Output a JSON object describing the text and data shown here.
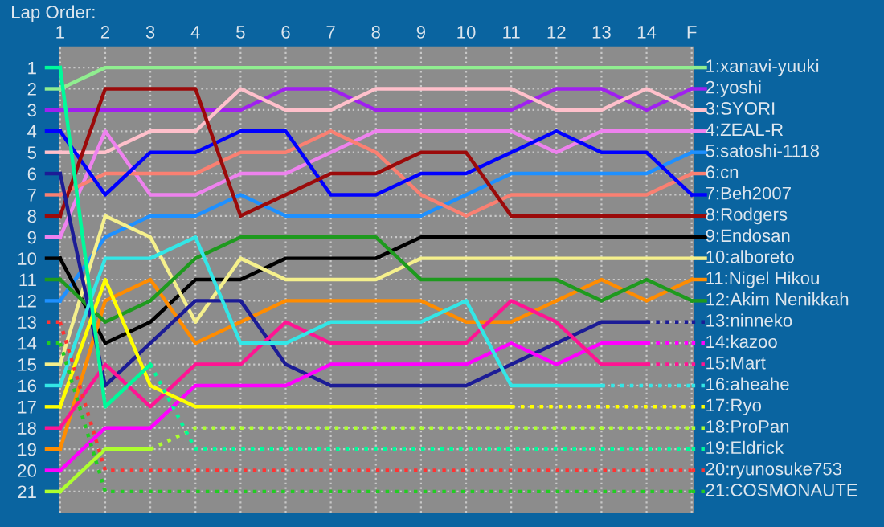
{
  "chart_data": {
    "type": "line",
    "title": "Lap Order:",
    "categories": [
      "1",
      "2",
      "3",
      "4",
      "5",
      "6",
      "7",
      "8",
      "9",
      "10",
      "11",
      "12",
      "13",
      "14",
      "F"
    ],
    "ylim": [
      22,
      0
    ],
    "yticks": [
      1,
      2,
      3,
      4,
      5,
      6,
      7,
      8,
      9,
      10,
      11,
      12,
      13,
      14,
      15,
      16,
      17,
      18,
      19,
      20,
      21
    ],
    "grid": true,
    "legend": "right",
    "line_style": "solid",
    "series": [
      {
        "name": "1:xanavi-yuuki",
        "color": "#90ee90",
        "values": [
          2,
          1,
          1,
          1,
          1,
          1,
          1,
          1,
          1,
          1,
          1,
          1,
          1,
          1,
          1
        ]
      },
      {
        "name": "2:yoshi",
        "color": "#a020f0",
        "values": [
          3,
          3,
          3,
          3,
          3,
          2,
          2,
          3,
          3,
          3,
          3,
          2,
          2,
          3,
          2
        ]
      },
      {
        "name": "3:SYORI",
        "color": "#ffc0cb",
        "values": [
          5,
          5,
          4,
          4,
          2,
          3,
          3,
          2,
          2,
          2,
          2,
          3,
          3,
          2,
          3
        ]
      },
      {
        "name": "4:ZEAL-R",
        "color": "#ee82ee",
        "values": [
          9,
          4,
          7,
          7,
          6,
          6,
          5,
          4,
          4,
          4,
          4,
          5,
          4,
          4,
          4
        ]
      },
      {
        "name": "5:satoshi-1118",
        "color": "#1e90ff",
        "values": [
          12,
          9,
          8,
          8,
          7,
          8,
          8,
          8,
          8,
          7,
          6,
          6,
          6,
          6,
          5
        ]
      },
      {
        "name": "6:cn",
        "color": "#fa8072",
        "values": [
          7,
          6,
          6,
          6,
          5,
          5,
          4,
          5,
          7,
          8,
          7,
          7,
          7,
          7,
          6
        ]
      },
      {
        "name": "7:Beh2007",
        "color": "#0000ff",
        "values": [
          4,
          7,
          5,
          5,
          4,
          4,
          7,
          7,
          6,
          6,
          5,
          4,
          5,
          5,
          7
        ]
      },
      {
        "name": "8:Rodgers",
        "color": "#9b0a0a",
        "values": [
          8,
          2,
          2,
          2,
          8,
          7,
          6,
          6,
          5,
          5,
          8,
          8,
          8,
          8,
          8
        ]
      },
      {
        "name": "9:Endosan",
        "color": "#000000",
        "values": [
          10,
          14,
          13,
          11,
          11,
          10,
          10,
          10,
          9,
          9,
          9,
          9,
          9,
          9,
          9
        ]
      },
      {
        "name": "10:alboreto",
        "color": "#f5f08c",
        "values": [
          15,
          8,
          9,
          13,
          10,
          11,
          11,
          11,
          10,
          10,
          10,
          10,
          10,
          10,
          10
        ]
      },
      {
        "name": "11:Nigel Hikou",
        "color": "#ff8c00",
        "values": [
          19,
          12,
          11,
          14,
          13,
          12,
          12,
          12,
          12,
          13,
          13,
          12,
          11,
          12,
          11
        ]
      },
      {
        "name": "12:Akim Nenikkah",
        "color": "#1e9a1e",
        "values": [
          11,
          13,
          12,
          10,
          9,
          9,
          9,
          9,
          11,
          11,
          11,
          11,
          12,
          11,
          12
        ]
      },
      {
        "name": null,
        "color": "#1c1c96",
        "values": [
          6,
          16,
          14,
          12,
          12,
          15,
          16,
          16,
          16,
          16,
          15,
          14,
          13,
          13,
          null
        ]
      },
      {
        "name": "13:ninneko",
        "color": "#1c1c96",
        "line_style": "dotted",
        "values": [
          null,
          null,
          null,
          null,
          null,
          null,
          null,
          null,
          null,
          null,
          null,
          null,
          null,
          13,
          13
        ]
      },
      {
        "name": null,
        "color": "#ff00ff",
        "values": [
          20,
          18,
          18,
          16,
          16,
          16,
          15,
          15,
          15,
          15,
          14,
          15,
          14,
          14,
          null
        ]
      },
      {
        "name": "14:kazoo",
        "color": "#ff00ff",
        "line_style": "dotted",
        "values": [
          null,
          null,
          null,
          null,
          null,
          null,
          null,
          null,
          null,
          null,
          null,
          null,
          null,
          14,
          14
        ]
      },
      {
        "name": null,
        "color": "#ff1493",
        "values": [
          18,
          15,
          17,
          15,
          15,
          13,
          14,
          14,
          14,
          14,
          12,
          13,
          15,
          15,
          null
        ]
      },
      {
        "name": "15:Mart",
        "color": "#ff1493",
        "line_style": "dotted",
        "values": [
          null,
          null,
          null,
          null,
          null,
          null,
          null,
          null,
          null,
          null,
          null,
          null,
          null,
          15,
          15
        ]
      },
      {
        "name": null,
        "color": "#33e6e6",
        "values": [
          16,
          10,
          10,
          9,
          14,
          14,
          13,
          13,
          13,
          12,
          16,
          16,
          16,
          null,
          null
        ]
      },
      {
        "name": "16:aheahe",
        "color": "#33e6e6",
        "line_style": "dotted",
        "values": [
          null,
          null,
          null,
          null,
          null,
          null,
          null,
          null,
          null,
          null,
          null,
          null,
          16,
          16,
          16
        ]
      },
      {
        "name": null,
        "color": "#ffff00",
        "values": [
          17,
          11,
          16,
          17,
          17,
          17,
          17,
          17,
          17,
          17,
          17,
          null,
          null,
          null,
          null
        ]
      },
      {
        "name": "17:Ryo",
        "color": "#ffff00",
        "line_style": "dotted",
        "values": [
          null,
          null,
          null,
          null,
          null,
          null,
          null,
          null,
          null,
          null,
          17,
          17,
          17,
          17,
          17
        ]
      },
      {
        "name": null,
        "color": "#adff2f",
        "values": [
          21,
          19,
          19,
          null,
          null,
          null,
          null,
          null,
          null,
          null,
          null,
          null,
          null,
          null,
          null
        ]
      },
      {
        "name": "18:ProPan",
        "color": "#adff2f",
        "line_style": "dotted",
        "values": [
          null,
          null,
          19,
          18,
          18,
          18,
          18,
          18,
          18,
          18,
          18,
          18,
          18,
          18,
          18
        ]
      },
      {
        "name": null,
        "color": "#00fa9a",
        "values": [
          1,
          17,
          15,
          null,
          null,
          null,
          null,
          null,
          null,
          null,
          null,
          null,
          null,
          null,
          null
        ]
      },
      {
        "name": "19:Eldrick",
        "color": "#00fa9a",
        "line_style": "dotted",
        "values": [
          null,
          null,
          15,
          19,
          19,
          19,
          19,
          19,
          19,
          19,
          19,
          19,
          19,
          19,
          19
        ]
      },
      {
        "name": "20:ryunosuke753",
        "color": "#ff3333",
        "line_style": "dotted",
        "values": [
          13,
          20,
          20,
          20,
          20,
          20,
          20,
          20,
          20,
          20,
          20,
          20,
          20,
          20,
          20
        ]
      },
      {
        "name": "21:COSMONAUTE",
        "color": "#22cc22",
        "line_style": "dotted",
        "values": [
          14,
          21,
          21,
          21,
          21,
          21,
          21,
          21,
          21,
          21,
          21,
          21,
          21,
          21,
          21
        ]
      }
    ]
  }
}
